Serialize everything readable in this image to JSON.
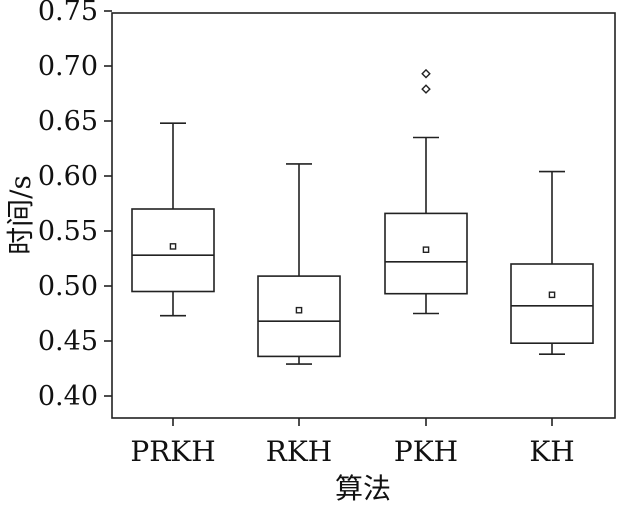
{
  "chart_data": {
    "type": "boxplot",
    "title": "",
    "xlabel": "算法",
    "ylabel": "时间/s",
    "ylim": [
      0.4,
      0.75
    ],
    "yticks": [
      "0.40",
      "0.45",
      "0.50",
      "0.55",
      "0.60",
      "0.65",
      "0.70",
      "0.75"
    ],
    "categories": [
      "PRKH",
      "RKH",
      "PKH",
      "KH"
    ],
    "boxes": [
      {
        "category": "PRKH",
        "min": 0.473,
        "q1": 0.495,
        "median": 0.528,
        "q3": 0.57,
        "max": 0.648,
        "mean": 0.536,
        "outliers": []
      },
      {
        "category": "RKH",
        "min": 0.429,
        "q1": 0.436,
        "median": 0.468,
        "q3": 0.509,
        "max": 0.611,
        "mean": 0.478,
        "outliers": []
      },
      {
        "category": "PKH",
        "min": 0.475,
        "q1": 0.493,
        "median": 0.522,
        "q3": 0.566,
        "max": 0.635,
        "mean": 0.533,
        "outliers": [
          0.679,
          0.693
        ]
      },
      {
        "category": "KH",
        "min": 0.438,
        "q1": 0.448,
        "median": 0.482,
        "q3": 0.52,
        "max": 0.604,
        "mean": 0.492,
        "outliers": []
      }
    ],
    "grid": false,
    "legend": "none"
  }
}
